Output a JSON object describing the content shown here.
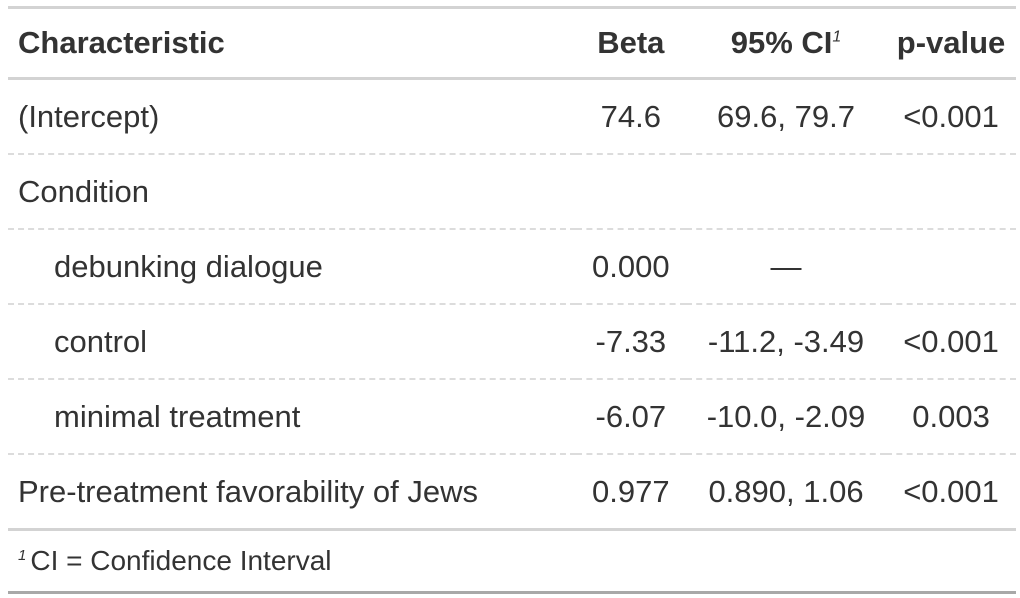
{
  "table": {
    "headers": {
      "characteristic": "Characteristic",
      "beta": "Beta",
      "ci": "95% CI",
      "ci_footnote_mark": "1",
      "p_value": "p-value"
    },
    "rows": [
      {
        "label": "(Intercept)",
        "beta": "74.6",
        "ci": "69.6, 79.7",
        "p": "<0.001",
        "indent": false
      },
      {
        "label": "Condition",
        "beta": "",
        "ci": "",
        "p": "",
        "indent": false
      },
      {
        "label": "debunking dialogue",
        "beta": "0.000",
        "ci": "—",
        "p": "",
        "indent": true
      },
      {
        "label": "control",
        "beta": "-7.33",
        "ci": "-11.2, -3.49",
        "p": "<0.001",
        "indent": true
      },
      {
        "label": "minimal treatment",
        "beta": "-6.07",
        "ci": "-10.0, -2.09",
        "p": "0.003",
        "indent": true
      },
      {
        "label": "Pre-treatment favorability of Jews",
        "beta": "0.977",
        "ci": "0.890, 1.06",
        "p": "<0.001",
        "indent": false
      }
    ],
    "footnote": {
      "mark": "1",
      "text": "CI = Confidence Interval"
    }
  }
}
